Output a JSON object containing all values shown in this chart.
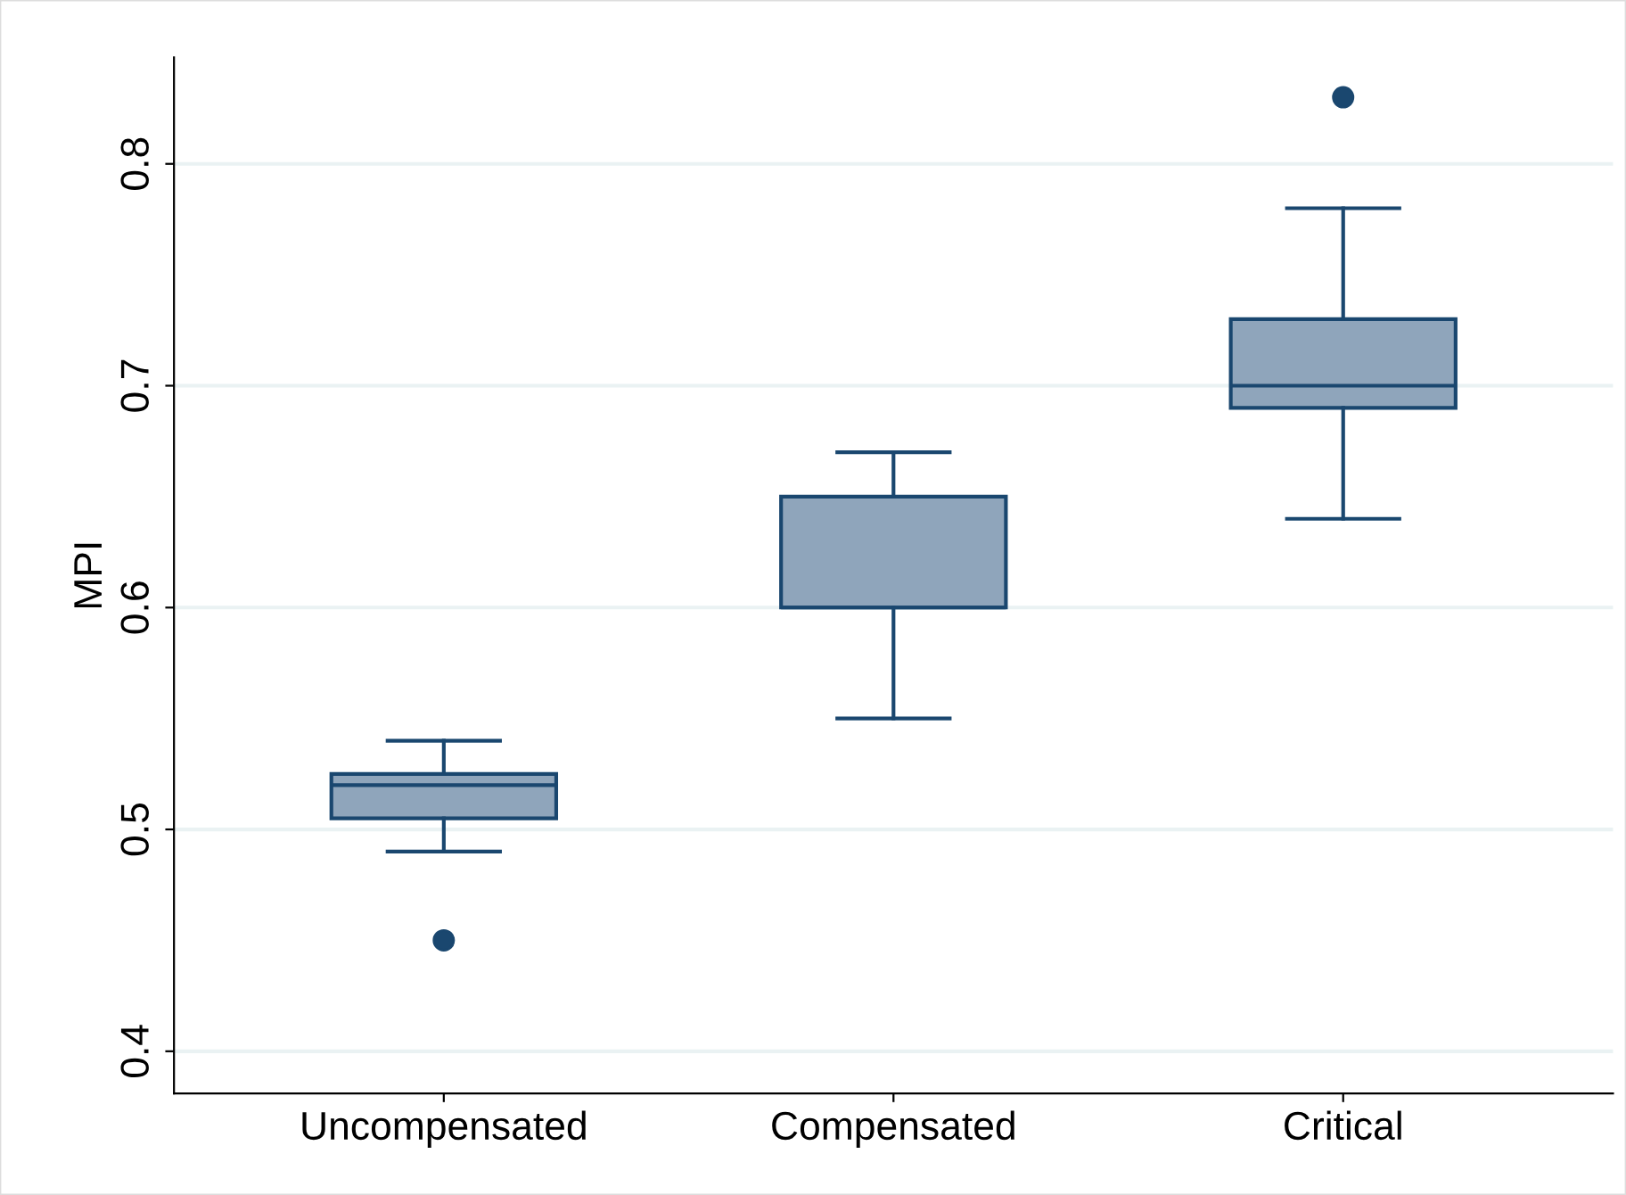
{
  "chart_data": {
    "type": "box",
    "ylabel": "MPI",
    "categories": [
      "Uncompensated",
      "Compensated",
      "Critical"
    ],
    "boxes": [
      {
        "low": 0.49,
        "q1": 0.505,
        "median": 0.52,
        "q3": 0.525,
        "high": 0.54,
        "outliers": [
          0.45
        ]
      },
      {
        "low": 0.55,
        "q1": 0.6,
        "median": 0.6,
        "q3": 0.65,
        "high": 0.67
      },
      {
        "low": 0.64,
        "q1": 0.69,
        "median": 0.7,
        "q3": 0.73,
        "high": 0.78,
        "outliers": [
          0.83
        ]
      }
    ],
    "color": "#8fa5bb",
    "ylim": [
      0.381,
      0.848
    ],
    "yticks": [
      0.4,
      0.5,
      0.6,
      0.7,
      0.8
    ],
    "grid": "y",
    "legend": false
  }
}
